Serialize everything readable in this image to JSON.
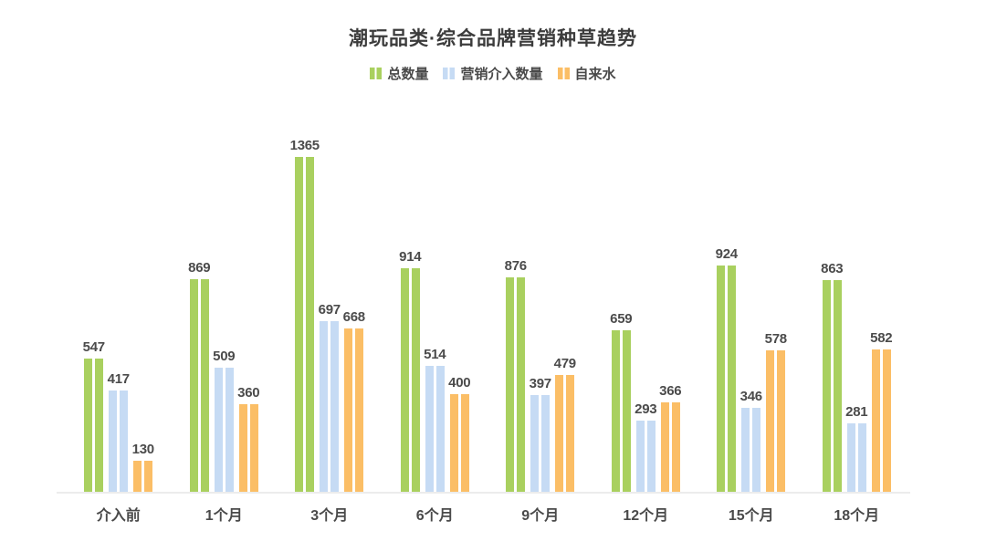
{
  "header": {
    "title": "潮玩品类·综合品牌营销种草趋势"
  },
  "colors": {
    "series_total": "#a9d05f",
    "series_marketing": "#c6dbf4",
    "series_organic": "#fbbe66",
    "title_text": "#3c3c3c",
    "label_text": "#4a4a4a",
    "axis_line": "#ececec",
    "background": "#ffffff"
  },
  "chart_data": {
    "type": "bar",
    "title": "潮玩品类·综合品牌营销种草趋势",
    "categories": [
      "介入前",
      "1个月",
      "3个月",
      "6个月",
      "9个月",
      "12个月",
      "15个月",
      "18个月"
    ],
    "series": [
      {
        "key": "total",
        "name": "总数量",
        "color": "#a9d05f",
        "values": [
          547,
          869,
          1365,
          914,
          876,
          659,
          924,
          863
        ]
      },
      {
        "key": "marketing",
        "name": "营销介入数量",
        "color": "#c6dbf4",
        "values": [
          417,
          509,
          697,
          514,
          397,
          293,
          346,
          281
        ]
      },
      {
        "key": "organic",
        "name": "自来水",
        "color": "#fbbe66",
        "values": [
          130,
          360,
          668,
          400,
          479,
          366,
          578,
          582
        ]
      }
    ],
    "xlabel": "",
    "ylabel": "",
    "ylim": [
      0,
      1365
    ],
    "grid": false,
    "legend_position": "top",
    "value_labels": true
  }
}
